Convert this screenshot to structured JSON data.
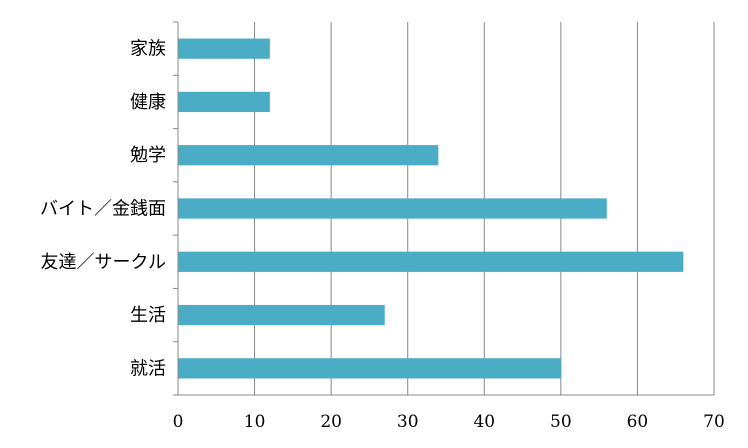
{
  "chart_data": {
    "type": "bar",
    "orientation": "horizontal",
    "categories": [
      "家族",
      "健康",
      "勉学",
      "バイト／金銭面",
      "友達／サークル",
      "生活",
      "就活"
    ],
    "values": [
      12,
      12,
      34,
      56,
      66,
      27,
      50
    ],
    "xlim": [
      0,
      70
    ],
    "xticks": [
      "0",
      "10",
      "20",
      "30",
      "40",
      "50",
      "60",
      "70"
    ],
    "title": "",
    "xlabel": "",
    "ylabel": "",
    "grid": "vertical",
    "legend": "none",
    "bar_color": "#4BACC6",
    "grid_color": "#888888"
  }
}
